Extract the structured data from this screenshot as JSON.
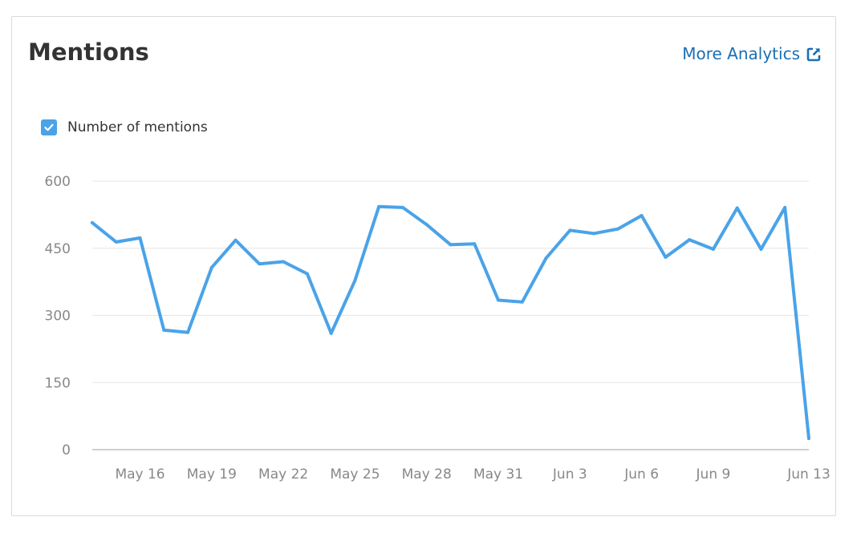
{
  "card": {
    "title": "Mentions",
    "more_link": "More Analytics",
    "more_link_icon": "external-link-icon"
  },
  "colors": {
    "series": "#4aa3e8",
    "link": "#1a6fb4",
    "grid": "#e5e5e5",
    "axis": "#bdbdbd"
  },
  "chart_data": {
    "type": "line",
    "title": "",
    "xlabel": "",
    "ylabel": "",
    "ylim": [
      0,
      600
    ],
    "yticks": [
      0,
      150,
      300,
      450,
      600
    ],
    "grid": true,
    "legend_placement": "top-left",
    "x": [
      "May 14",
      "May 15",
      "May 16",
      "May 17",
      "May 18",
      "May 19",
      "May 20",
      "May 21",
      "May 22",
      "May 23",
      "May 24",
      "May 25",
      "May 26",
      "May 27",
      "May 28",
      "May 29",
      "May 30",
      "May 31",
      "Jun 1",
      "Jun 2",
      "Jun 3",
      "Jun 4",
      "Jun 5",
      "Jun 6",
      "Jun 7",
      "Jun 8",
      "Jun 9",
      "Jun 10",
      "Jun 11",
      "Jun 12",
      "Jun 13"
    ],
    "x_tick_labels": [
      "May 16",
      "May 19",
      "May 22",
      "May 25",
      "May 28",
      "May 31",
      "Jun 3",
      "Jun 6",
      "Jun 9",
      "Jun 13"
    ],
    "x_tick_indices": [
      2,
      5,
      8,
      11,
      14,
      17,
      20,
      23,
      26,
      30
    ],
    "series": [
      {
        "name": "Number of mentions",
        "color": "#4aa3e8",
        "values": [
          507,
          464,
          473,
          267,
          262,
          407,
          468,
          415,
          420,
          393,
          260,
          378,
          543,
          541,
          503,
          458,
          460,
          334,
          330,
          428,
          490,
          483,
          493,
          523,
          430,
          469,
          448,
          540,
          448,
          541,
          25
        ]
      }
    ]
  }
}
